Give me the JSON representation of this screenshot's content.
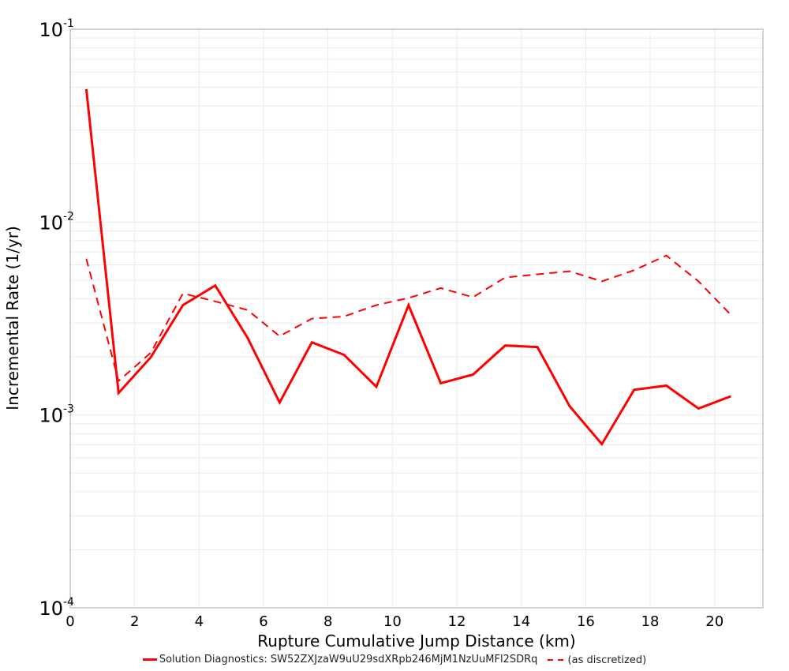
{
  "chart_data": {
    "type": "line",
    "title": "",
    "xlabel": "Rupture Cumulative Jump Distance (km)",
    "ylabel": "Incremental Rate (1/yr)",
    "xlim": [
      0,
      21.5
    ],
    "ylim": [
      0.0001,
      0.1
    ],
    "yscale": "log",
    "grid": true,
    "legend_position": "bottom",
    "x_ticks": [
      "0",
      "2",
      "4",
      "6",
      "8",
      "10",
      "12",
      "14",
      "16",
      "18",
      "20"
    ],
    "y_ticks": [
      {
        "base": "10",
        "exp": "-1"
      },
      {
        "base": "10",
        "exp": "-2"
      },
      {
        "base": "10",
        "exp": "-3"
      },
      {
        "base": "10",
        "exp": "-4"
      }
    ],
    "x": [
      0.5,
      1.5,
      2.5,
      3.5,
      4.5,
      5.5,
      6.5,
      7.5,
      8.5,
      9.5,
      10.5,
      11.5,
      12.5,
      13.5,
      14.5,
      15.5,
      16.5,
      17.5,
      18.5,
      19.5,
      20.5
    ],
    "series": [
      {
        "name": "Solution Diagnostics: SW52ZXJzaW9uU29sdXRpb246MjM1NzUuMFl2SDRq",
        "style": "solid",
        "color": "#ff0000",
        "values": [
          0.0489,
          0.0013,
          0.00199,
          0.00371,
          0.00469,
          0.00252,
          0.00116,
          0.00238,
          0.00205,
          0.0014,
          0.00371,
          0.00146,
          0.00162,
          0.00229,
          0.00225,
          0.00111,
          0.000706,
          0.00135,
          0.00142,
          0.00108,
          0.00125
        ]
      },
      {
        "name": "(as discretized)",
        "style": "dashed",
        "color": "#ff0000",
        "values": [
          0.00646,
          0.0015,
          0.0021,
          0.00427,
          0.00388,
          0.0035,
          0.00256,
          0.00316,
          0.00324,
          0.00371,
          0.00404,
          0.00455,
          0.00408,
          0.00516,
          0.00536,
          0.00556,
          0.00493,
          0.00563,
          0.00671,
          0.00493,
          0.00331
        ]
      }
    ]
  },
  "legend": {
    "items": [
      {
        "label": "Solution Diagnostics: SW52ZXJzaW9uU29sdXRpb246MjM1NzUuMFl2SDRq"
      },
      {
        "label": "(as discretized)"
      }
    ]
  }
}
